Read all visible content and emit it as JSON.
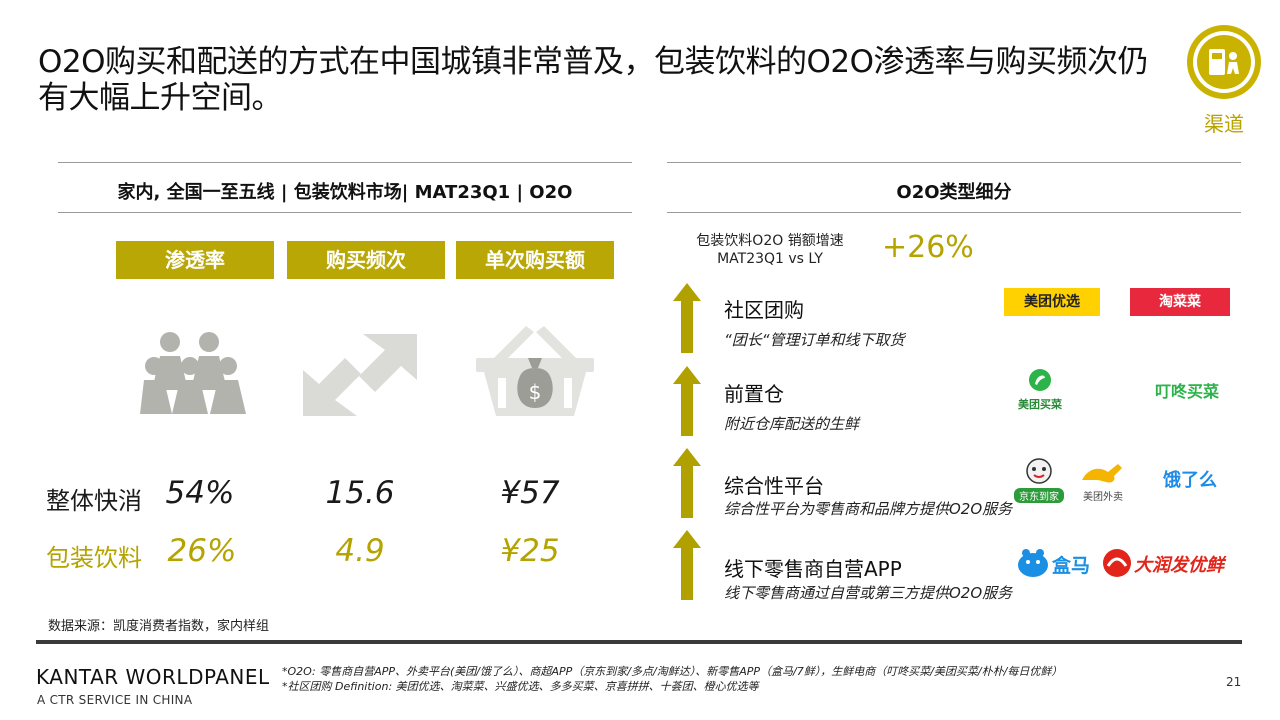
{
  "title": "O2O购买和配送的方式在中国城镇非常普及，包装饮料的O2O渗透率与购买频次仍有大幅上升空间。",
  "badge": {
    "label": "渠道",
    "icon": "store-delivery-icon"
  },
  "left_panel": {
    "header": "家内, 全国一至五线 | 包装饮料市场| MAT23Q1 | O2O",
    "metrics": [
      "渗透率",
      "购买频次",
      "单次购买额"
    ],
    "rows": [
      {
        "label": "整体快消",
        "values": [
          "54%",
          "15.6",
          "¥57"
        ]
      },
      {
        "label": "包装饮料",
        "values": [
          "26%",
          "4.9",
          "¥25"
        ]
      }
    ],
    "source": "数据来源：凯度消费者指数，家内样组"
  },
  "right_panel": {
    "header": "O2O类型细分",
    "growth_label_line1": "包装饮料O2O 销额增速",
    "growth_label_line2": "MAT23Q1 vs LY",
    "growth_value": "+26%",
    "categories": [
      {
        "title": "社区团购",
        "desc": "“团长“管理订单和线下取货",
        "logos": [
          "美团优选",
          "淘菜菜"
        ]
      },
      {
        "title": "前置仓",
        "desc": "附近仓库配送的生鲜",
        "logos": [
          "美团买菜",
          "叮咚买菜"
        ]
      },
      {
        "title": "综合性平台",
        "desc": "综合性平台为零售商和品牌方提供O2O服务",
        "logos": [
          "京东到家",
          "美团外卖",
          "饿了么"
        ]
      },
      {
        "title": "线下零售商自营APP",
        "desc": "线下零售商通过自营或第三方提供O2O服务",
        "logos": [
          "盒马",
          "大润发优鲜"
        ]
      }
    ]
  },
  "footer": {
    "brand": "KANTAR WORLDPANEL",
    "sub": "A CTR SERVICE IN CHINA",
    "note1": "*O2O: 零售商自营APP、外卖平台(美团/饿了么）、商超APP（京东到家/多点/淘鲜达）、新零售APP（盒马/7鲜），生鲜电商（叮咚买菜/美团买菜/朴朴/每日优鲜）",
    "note2": "*社区团购 Definition: 美团优选、淘菜菜、兴盛优选、多多买菜、京喜拼拼、十荟团、橙心优选等",
    "page": "21"
  },
  "colors": {
    "gold": "#b9a705",
    "icon_grey": "#b3b3ad",
    "divider": "#3a3a3a"
  }
}
